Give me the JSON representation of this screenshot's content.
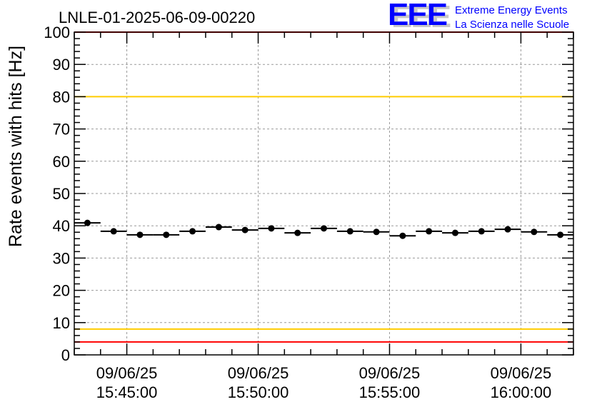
{
  "chart_data": {
    "type": "scatter",
    "title": "LNLE-01-2025-06-09-00220",
    "xlabel": "",
    "ylabel": "Rate events with hits [Hz]",
    "ylim": [
      0,
      100
    ],
    "xlim_minutes_from_1545": [
      -2,
      17
    ],
    "y_ticks": [
      0,
      10,
      20,
      30,
      40,
      50,
      60,
      70,
      80,
      90,
      100
    ],
    "x_ticks": [
      {
        "minute": 0,
        "date": "09/06/25",
        "time": "15:45:00"
      },
      {
        "minute": 5,
        "date": "09/06/25",
        "time": "15:50:00"
      },
      {
        "minute": 10,
        "date": "09/06/25",
        "time": "15:55:00"
      },
      {
        "minute": 15,
        "date": "09/06/25",
        "time": "16:00:00"
      }
    ],
    "bin_width_minutes": 1,
    "bin_start_minute": -2,
    "values": [
      40.9,
      38.3,
      37.2,
      37.2,
      38.3,
      39.6,
      38.7,
      39.2,
      37.8,
      39.2,
      38.3,
      38.1,
      36.9,
      38.3,
      37.8,
      38.3,
      38.9,
      38.1,
      37.2
    ],
    "reference_lines": [
      {
        "value": 100,
        "color": "#ff0000"
      },
      {
        "value": 80,
        "color": "#ffcc00"
      },
      {
        "value": 8,
        "color": "#ffcc00"
      },
      {
        "value": 4,
        "color": "#ff0000"
      }
    ],
    "grid": true
  },
  "logo": {
    "letters": "EEE",
    "line1": "Extreme Energy Events",
    "line2": "La Scienza nelle Scuole",
    "color": "#0000ff"
  }
}
